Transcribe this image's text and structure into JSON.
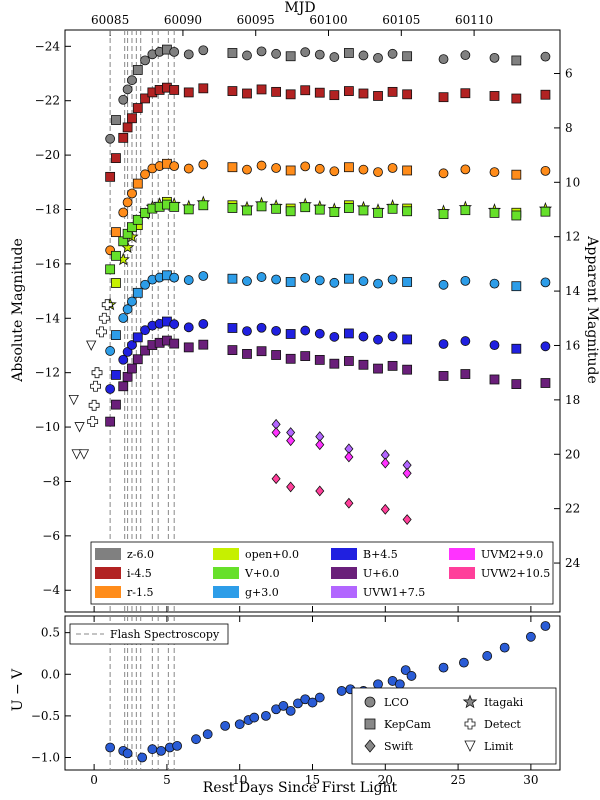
{
  "chart_data": {
    "type": "scatter",
    "x_label": "Rest Days Since First Light",
    "top_x_label": "MJD",
    "y_label_left": "Absolute Magnitude",
    "y_label_right": "Apparent Magnitude",
    "bottom_y_label": "U − V",
    "x_ticks": [
      "0",
      "5",
      "10",
      "15",
      "20",
      "25",
      "30"
    ],
    "mjd_ticks": [
      "60085",
      "60090",
      "60095",
      "60100",
      "60105",
      "60110"
    ],
    "abs_mag_ticks": [
      "−24",
      "−22",
      "−20",
      "−18",
      "−16",
      "−14",
      "−12",
      "−10",
      "−8",
      "−6",
      "−4"
    ],
    "app_mag_ticks": [
      "6",
      "8",
      "10",
      "12",
      "14",
      "16",
      "18",
      "20",
      "22",
      "24"
    ],
    "color_ticks": [
      "0.5",
      "0.0",
      "−0.5",
      "−1.0"
    ],
    "xlim": [
      -2,
      32
    ],
    "ylim_abs": [
      -3.2,
      -24.6
    ],
    "ylim_color": [
      -1.15,
      0.7
    ],
    "mjd_zero": 60083.9,
    "distance_modulus": 29.0,
    "flash_spectroscopy_days": [
      1.1,
      2.1,
      2.3,
      2.6,
      2.9,
      3.2,
      4.0,
      4.4,
      5.1,
      5.5
    ],
    "bands": [
      {
        "name": "z-6.0",
        "color": "#808080",
        "peak": -23.8,
        "rise_start": -20.6
      },
      {
        "name": "i-4.5",
        "color": "#b22222",
        "peak": -22.4,
        "rise_start": -19.2
      },
      {
        "name": "r-1.5",
        "color": "#ff8c1a",
        "peak": -19.6,
        "rise_start": -16.5
      },
      {
        "name": "open+0.0",
        "color": "#c6f000",
        "peak": -18.2,
        "rise_start": -14.5
      },
      {
        "name": "V+0.0",
        "color": "#66e02a",
        "peak": -18.1,
        "rise_start": -15.8
      },
      {
        "name": "g+3.0",
        "color": "#2d9de8",
        "peak": -15.5,
        "rise_start": -12.8
      },
      {
        "name": "B+4.5",
        "color": "#2020e0",
        "peak": -13.8,
        "rise_start": -11.4
      },
      {
        "name": "U+6.0",
        "color": "#6a1f7a",
        "peak": -13.1,
        "rise_start": -10.2
      },
      {
        "name": "UVW1+7.5",
        "color": "#b266ff",
        "peak": -10.1,
        "rise_start": -10.1
      },
      {
        "name": "UVM2+9.0",
        "color": "#ff33ff",
        "peak": -9.8,
        "rise_start": -9.8
      },
      {
        "name": "UVW2+10.5",
        "color": "#ff3f9a",
        "peak": -8.1,
        "rise_start": -8.1
      }
    ],
    "legend_markers": [
      {
        "label": "LCO",
        "shape": "circle"
      },
      {
        "label": "KepCam",
        "shape": "square"
      },
      {
        "label": "Swift",
        "shape": "diamond"
      },
      {
        "label": "Itagaki",
        "shape": "star"
      },
      {
        "label": "Detect",
        "shape": "cross"
      },
      {
        "label": "Limit",
        "shape": "triangle"
      }
    ],
    "flash_legend": "Flash Spectroscopy",
    "color_curve": [
      [
        1.1,
        -0.88
      ],
      [
        2.0,
        -0.92
      ],
      [
        2.3,
        -0.95
      ],
      [
        3.3,
        -1.0
      ],
      [
        4.0,
        -0.9
      ],
      [
        4.6,
        -0.92
      ],
      [
        5.2,
        -0.88
      ],
      [
        5.7,
        -0.86
      ],
      [
        7.0,
        -0.78
      ],
      [
        7.8,
        -0.72
      ],
      [
        9.0,
        -0.62
      ],
      [
        10.0,
        -0.6
      ],
      [
        10.6,
        -0.55
      ],
      [
        11.0,
        -0.52
      ],
      [
        11.8,
        -0.5
      ],
      [
        12.5,
        -0.42
      ],
      [
        13.0,
        -0.38
      ],
      [
        13.5,
        -0.44
      ],
      [
        14.0,
        -0.35
      ],
      [
        14.5,
        -0.3
      ],
      [
        15.0,
        -0.34
      ],
      [
        15.5,
        -0.28
      ],
      [
        17.0,
        -0.2
      ],
      [
        17.6,
        -0.18
      ],
      [
        18.5,
        -0.2
      ],
      [
        19.5,
        -0.12
      ],
      [
        20.5,
        -0.08
      ],
      [
        21.0,
        -0.12
      ],
      [
        21.4,
        0.05
      ],
      [
        21.8,
        -0.02
      ],
      [
        24.0,
        0.08
      ],
      [
        25.4,
        0.14
      ],
      [
        27.0,
        0.22
      ],
      [
        28.2,
        0.32
      ],
      [
        30.0,
        0.45
      ],
      [
        31.0,
        0.58
      ]
    ]
  }
}
